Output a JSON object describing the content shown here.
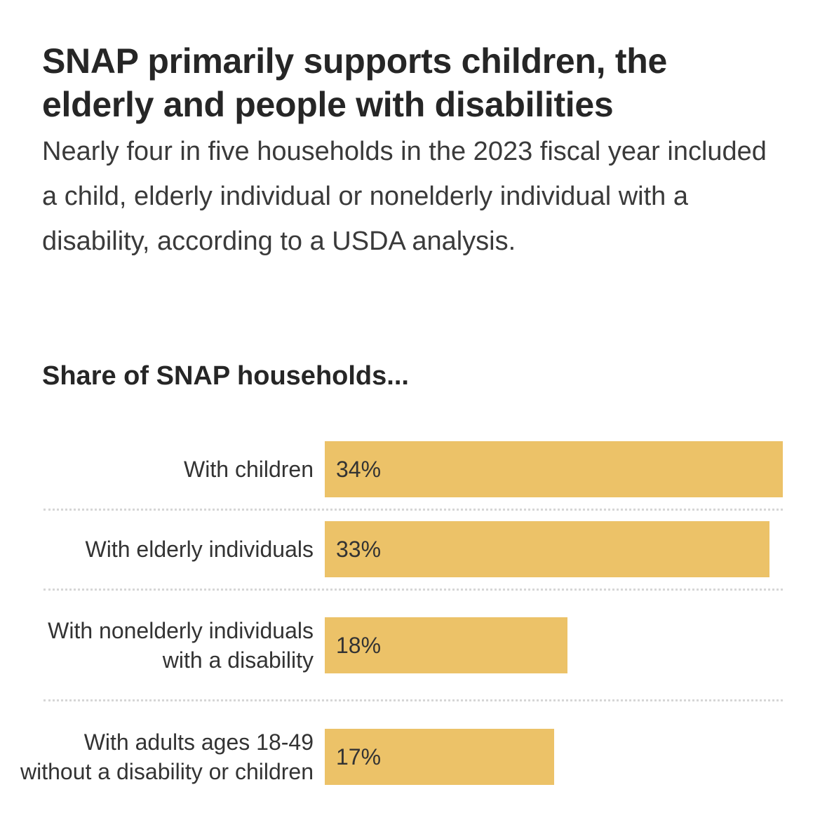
{
  "title": "SNAP primarily supports children, the elderly and people with disabilities",
  "subtitle": "Nearly four in five households in the 2023 fiscal year included a child, elderly individual or nonelderly individual with a disability, according to a USDA analysis.",
  "colors": {
    "bar": "#ecc268",
    "text": "#262626"
  },
  "chart_data": {
    "type": "bar",
    "orientation": "horizontal",
    "title": "Share of SNAP households...",
    "categories": [
      "With children",
      "With elderly individuals",
      "With nonelderly individuals with a disability",
      "With adults ages 18-49 without a disability or children"
    ],
    "values": [
      34,
      33,
      18,
      17
    ],
    "value_labels": [
      "34%",
      "33%",
      "18%",
      "17%"
    ],
    "xlim": [
      0,
      34
    ],
    "grid": false
  }
}
